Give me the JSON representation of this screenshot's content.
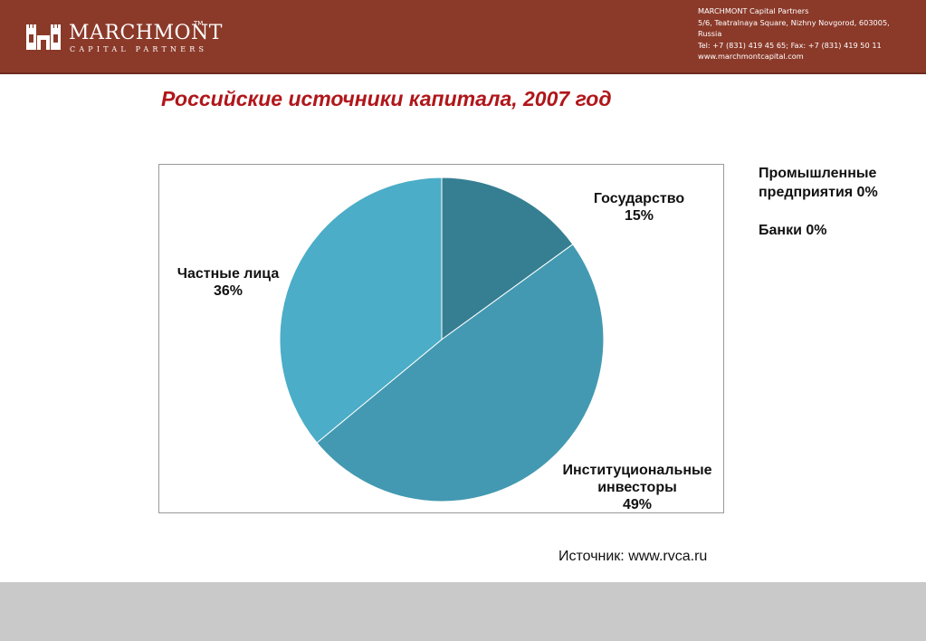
{
  "header": {
    "logo_name": "MARCHMONT",
    "logo_tm": "TM",
    "logo_sub": "CAPITAL PARTNERS",
    "contact": [
      "MARCHMONT Capital Partners",
      "5/6, Teatralnaya Square, Nizhny Novgorod, 603005,",
      "Russia",
      "Tel: +7 (831) 419 45 65; Fax: +7 (831) 419 50 11",
      "www.marchmontcapital.com"
    ],
    "color": "#8b3a2a"
  },
  "title": "Российские источники капитала, 2007 год",
  "chart_data": {
    "type": "pie",
    "title": "Российские источники капитала, 2007 год",
    "slices": [
      {
        "label_lines": [
          "Государство"
        ],
        "value_label": "15%",
        "value": 15,
        "color": "#367f92"
      },
      {
        "label_lines": [
          "Институциональные",
          "инвесторы"
        ],
        "value_label": "49%",
        "value": 49,
        "color": "#4399b1"
      },
      {
        "label_lines": [
          "Частные лица"
        ],
        "value_label": "36%",
        "value": 36,
        "color": "#4badc7"
      }
    ],
    "zero_slices": [
      {
        "label": "Промышленные предприятия",
        "value_label": "0%",
        "value": 0
      },
      {
        "label": "Банки",
        "value_label": "0%",
        "value": 0
      }
    ],
    "start_angle_deg": 0,
    "direction": "clockwise"
  },
  "zero_notes": {
    "line1": "Промышленные",
    "line2": "предприятия 0%",
    "line3": "Банки 0%"
  },
  "source": "Источник: www.rvca.ru"
}
